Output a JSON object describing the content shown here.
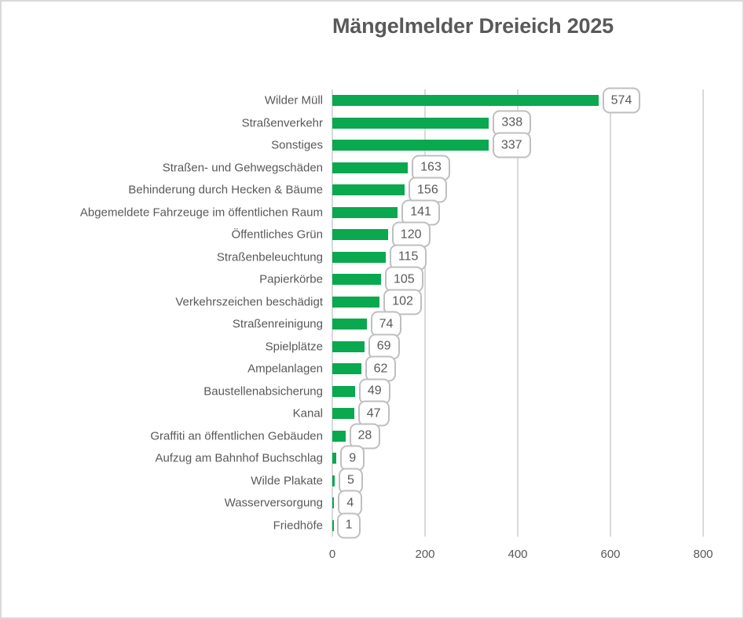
{
  "chart_data": {
    "type": "bar",
    "orientation": "horizontal",
    "title": "Mängelmelder Dreieich 2025",
    "categories": [
      "Wilder Müll",
      "Straßenverkehr",
      "Sonstiges",
      "Straßen- und Gehwegschäden",
      "Behinderung durch Hecken & Bäume",
      "Abgemeldete Fahrzeuge im öffentlichen Raum",
      "Öffentliches Grün",
      "Straßenbeleuchtung",
      "Papierkörbe",
      "Verkehrszeichen beschädigt",
      "Straßenreinigung",
      "Spielplätze",
      "Ampelanlagen",
      "Baustellenabsicherung",
      "Kanal",
      "Graffiti an öffentlichen Gebäuden",
      "Aufzug am Bahnhof Buchschlag",
      "Wilde Plakate",
      "Wasserversorgung",
      "Friedhöfe"
    ],
    "values": [
      574,
      338,
      337,
      163,
      156,
      141,
      120,
      115,
      105,
      102,
      74,
      69,
      62,
      49,
      47,
      28,
      9,
      5,
      4,
      1
    ],
    "xlabel": "",
    "ylabel": "",
    "xlim": [
      0,
      800
    ],
    "xticks": [
      0,
      200,
      400,
      600,
      800
    ],
    "grid": "vertical-only",
    "legend": "none",
    "data_labels": "callout-boxes",
    "colors": {
      "bar": "#0aa84f",
      "text": "#595959",
      "gridline": "#d9d9d9",
      "callout_border": "#bfbfbf",
      "callout_fill": "#ffffff",
      "chart_border": "#d9d9d9",
      "background": "#ffffff"
    }
  }
}
